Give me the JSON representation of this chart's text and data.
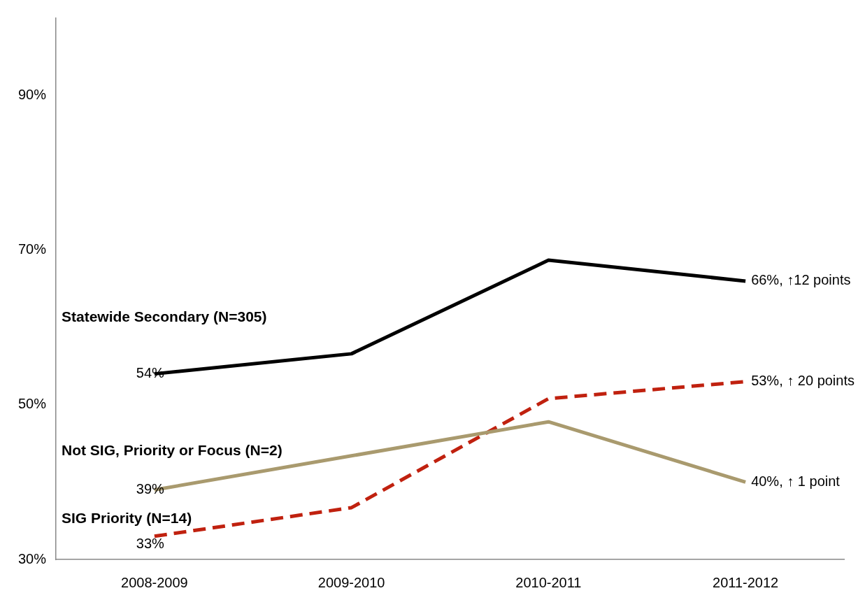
{
  "chart_data": {
    "type": "line",
    "categories": [
      "2008-2009",
      "2009-2010",
      "2010-2011",
      "2011-2012"
    ],
    "series": [
      {
        "name": "Statewide Secondary (N=305)",
        "color": "#000000",
        "values": [
          54,
          56.6,
          68.7,
          66
        ],
        "value_labels": [
          "54%",
          null,
          null,
          "66%, ↑12 points"
        ]
      },
      {
        "name": "Not SIG, Priority or Focus (N=2)",
        "color": "#a99a6e",
        "values": [
          39,
          43.4,
          47.8,
          40
        ],
        "value_labels": [
          "39%",
          null,
          null,
          "40%, ↑ 1 point"
        ]
      },
      {
        "name": "SIG Priority (N=14)",
        "color": "#c0210f",
        "line_style": "dashed",
        "values": [
          33,
          36.7,
          50.8,
          53
        ],
        "value_labels": [
          "33%",
          null,
          null,
          "53%, ↑ 20 points"
        ]
      }
    ],
    "ylim": [
      30,
      100
    ],
    "yticks": [
      {
        "value": 30,
        "label": "30%"
      },
      {
        "value": 50,
        "label": "50%"
      },
      {
        "value": 70,
        "label": "70%"
      },
      {
        "value": 90,
        "label": "90%"
      }
    ],
    "grid": false,
    "legend": false,
    "marker": "none"
  }
}
